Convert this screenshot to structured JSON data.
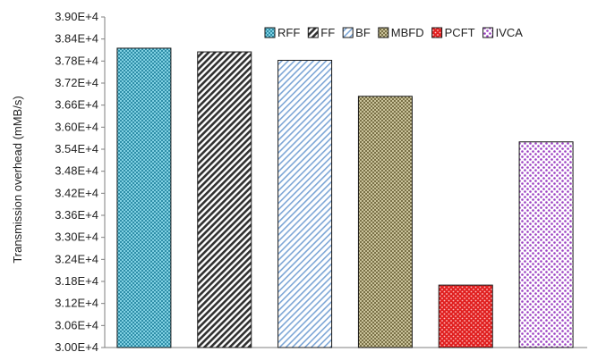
{
  "chart_data": {
    "type": "bar",
    "title": "",
    "xlabel": "",
    "ylabel": "Transmission overhead (mMB/s)",
    "ylim": [
      30000,
      39000
    ],
    "yticks": [
      "3.00E+4",
      "3.06E+4",
      "3.12E+4",
      "3.18E+4",
      "3.24E+4",
      "3.30E+4",
      "3.36E+4",
      "3.42E+4",
      "3.48E+4",
      "3.54E+4",
      "3.60E+4",
      "3.66E+4",
      "3.72E+4",
      "3.78E+4",
      "3.84E+4",
      "3.90E+4"
    ],
    "grid": false,
    "legend_position": "top-right",
    "series": [
      {
        "name": "RFF",
        "value": 38150,
        "color": "#4bacc6",
        "pattern": "dots-dense"
      },
      {
        "name": "FF",
        "value": 38050,
        "color": "#404040",
        "pattern": "diag-dark"
      },
      {
        "name": "BF",
        "value": 37820,
        "color": "#8db4e2",
        "pattern": "diag-light"
      },
      {
        "name": "MBFD",
        "value": 36840,
        "color": "#a39a6a",
        "pattern": "check"
      },
      {
        "name": "PCFT",
        "value": 31700,
        "color": "#e02020",
        "pattern": "dots-red"
      },
      {
        "name": "IVCA",
        "value": 35600,
        "color": "#9b3fc2",
        "pattern": "dots-purple"
      }
    ]
  }
}
